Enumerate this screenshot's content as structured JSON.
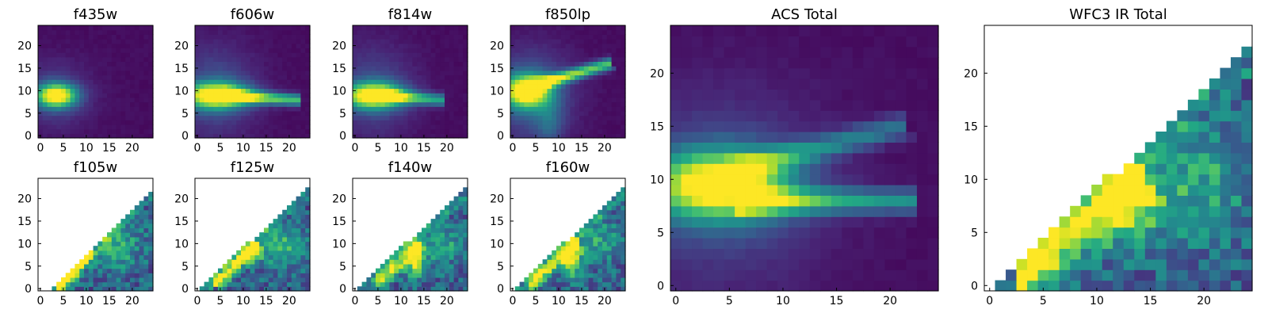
{
  "chart_data": [
    {
      "id": "f435w",
      "type": "heatmap",
      "title": "f435w",
      "xlim": [
        0,
        24
      ],
      "ylim": [
        0,
        24
      ],
      "xticks": [
        0,
        5,
        10,
        15,
        20
      ],
      "yticks": [
        0,
        5,
        10,
        15,
        20
      ],
      "colormap": "viridis",
      "coverage": "full",
      "structure": "compact-blob",
      "features": [
        {
          "kind": "blob",
          "cx": 3.5,
          "cy": 9,
          "sx": 3.0,
          "sy": 1.8,
          "amp": 1.0
        },
        {
          "kind": "halo",
          "cx": 3,
          "cy": 9,
          "sx": 5.5,
          "sy": 5,
          "amp": 0.18
        }
      ]
    },
    {
      "id": "f606w",
      "type": "heatmap",
      "title": "f606w",
      "xlim": [
        0,
        24
      ],
      "ylim": [
        0,
        24
      ],
      "xticks": [
        0,
        5,
        10,
        15,
        20
      ],
      "yticks": [
        0,
        5,
        10,
        15,
        20
      ],
      "colormap": "viridis",
      "coverage": "full",
      "structure": "horizontal-jet",
      "features": [
        {
          "kind": "blob",
          "cx": 4,
          "cy": 9,
          "sx": 5.0,
          "sy": 2.0,
          "amp": 1.0
        },
        {
          "kind": "jet",
          "x0": 6,
          "y0": 9,
          "x1": 22,
          "y1": 8,
          "w": 0.9,
          "amp": 0.85
        },
        {
          "kind": "halo",
          "cx": 4,
          "cy": 10,
          "sx": 6,
          "sy": 7,
          "amp": 0.22
        }
      ]
    },
    {
      "id": "f814w",
      "type": "heatmap",
      "title": "f814w",
      "xlim": [
        0,
        24
      ],
      "ylim": [
        0,
        24
      ],
      "xticks": [
        0,
        5,
        10,
        15,
        20
      ],
      "yticks": [
        0,
        5,
        10,
        15,
        20
      ],
      "colormap": "viridis",
      "coverage": "full",
      "structure": "horizontal-jet",
      "features": [
        {
          "kind": "blob",
          "cx": 4,
          "cy": 9,
          "sx": 4.5,
          "sy": 2.0,
          "amp": 1.0
        },
        {
          "kind": "jet",
          "x0": 6,
          "y0": 9,
          "x1": 19,
          "y1": 8,
          "w": 0.9,
          "amp": 0.7
        },
        {
          "kind": "halo",
          "cx": 4,
          "cy": 10,
          "sx": 6,
          "sy": 7,
          "amp": 0.2
        }
      ]
    },
    {
      "id": "f850lp",
      "type": "heatmap",
      "title": "f850lp",
      "xlim": [
        0,
        24
      ],
      "ylim": [
        0,
        24
      ],
      "xticks": [
        0,
        5,
        10,
        15,
        20
      ],
      "yticks": [
        0,
        5,
        10,
        15,
        20
      ],
      "colormap": "viridis",
      "coverage": "full",
      "structure": "diagonal-jet",
      "features": [
        {
          "kind": "blob",
          "cx": 3,
          "cy": 10,
          "sx": 3.5,
          "sy": 2.5,
          "amp": 1.0
        },
        {
          "kind": "jet",
          "x0": 4,
          "y0": 11,
          "x1": 21,
          "y1": 16,
          "w": 0.9,
          "amp": 0.9
        },
        {
          "kind": "halo",
          "cx": 4,
          "cy": 9,
          "sx": 6,
          "sy": 7,
          "amp": 0.28
        },
        {
          "kind": "blob",
          "cx": 8,
          "cy": 3,
          "sx": 2.0,
          "sy": 4,
          "amp": 0.2
        }
      ]
    },
    {
      "id": "f105w",
      "type": "heatmap",
      "title": "f105w",
      "xlim": [
        0,
        24
      ],
      "ylim": [
        0,
        24
      ],
      "xticks": [
        0,
        5,
        10,
        15,
        20
      ],
      "yticks": [
        0,
        5,
        10,
        15,
        20
      ],
      "colormap": "viridis",
      "coverage": "lower-right-triangle",
      "mask_x_start": 3,
      "mask_slope": 1.0,
      "features": [
        {
          "kind": "jet",
          "x0": 4,
          "y0": 0,
          "x1": 11,
          "y1": 8,
          "w": 1.0,
          "amp": 0.8
        },
        {
          "kind": "blob",
          "cx": 16,
          "cy": 10,
          "sx": 4,
          "sy": 4,
          "amp": 0.35
        }
      ]
    },
    {
      "id": "f125w",
      "type": "heatmap",
      "title": "f125w",
      "xlim": [
        0,
        24
      ],
      "ylim": [
        0,
        24
      ],
      "xticks": [
        0,
        5,
        10,
        15,
        20
      ],
      "yticks": [
        0,
        5,
        10,
        15,
        20
      ],
      "colormap": "viridis",
      "coverage": "lower-right-triangle",
      "mask_x_start": 1,
      "mask_slope": 0.95,
      "features": [
        {
          "kind": "jet",
          "x0": 4,
          "y0": 1,
          "x1": 13,
          "y1": 10,
          "w": 1.1,
          "amp": 0.65
        },
        {
          "kind": "blob",
          "cx": 12,
          "cy": 8,
          "sx": 1.5,
          "sy": 1.5,
          "amp": 0.45
        },
        {
          "kind": "blob",
          "cx": 18,
          "cy": 10,
          "sx": 4,
          "sy": 3.5,
          "amp": 0.35
        }
      ]
    },
    {
      "id": "f140w",
      "type": "heatmap",
      "title": "f140w",
      "xlim": [
        0,
        24
      ],
      "ylim": [
        0,
        24
      ],
      "xticks": [
        0,
        5,
        10,
        15,
        20
      ],
      "yticks": [
        0,
        5,
        10,
        15,
        20
      ],
      "colormap": "viridis",
      "coverage": "lower-right-triangle",
      "mask_x_start": 1,
      "mask_slope": 0.95,
      "features": [
        {
          "kind": "jet",
          "x0": 5,
          "y0": 1,
          "x1": 14,
          "y1": 10,
          "w": 1.1,
          "amp": 0.65
        },
        {
          "kind": "blob",
          "cx": 13,
          "cy": 6,
          "sx": 1.3,
          "sy": 2.5,
          "amp": 0.55
        },
        {
          "kind": "blob",
          "cx": 18,
          "cy": 10,
          "sx": 4,
          "sy": 3.5,
          "amp": 0.3
        }
      ]
    },
    {
      "id": "f160w",
      "type": "heatmap",
      "title": "f160w",
      "xlim": [
        0,
        24
      ],
      "ylim": [
        0,
        24
      ],
      "xticks": [
        0,
        5,
        10,
        15,
        20
      ],
      "yticks": [
        0,
        5,
        10,
        15,
        20
      ],
      "colormap": "viridis",
      "coverage": "lower-right-triangle",
      "mask_x_start": 1,
      "mask_slope": 0.95,
      "features": [
        {
          "kind": "jet",
          "x0": 4,
          "y0": 1,
          "x1": 14,
          "y1": 10,
          "w": 1.1,
          "amp": 0.65
        },
        {
          "kind": "blob",
          "cx": 13,
          "cy": 6,
          "sx": 1.4,
          "sy": 2.5,
          "amp": 0.55
        },
        {
          "kind": "blob",
          "cx": 18,
          "cy": 11,
          "sx": 4,
          "sy": 3.5,
          "amp": 0.3
        }
      ]
    },
    {
      "id": "acs-total",
      "type": "heatmap",
      "title": "ACS Total",
      "xlim": [
        0,
        24
      ],
      "ylim": [
        0,
        24
      ],
      "xticks": [
        0,
        5,
        10,
        15,
        20
      ],
      "yticks": [
        0,
        5,
        10,
        15,
        20
      ],
      "colormap": "viridis",
      "coverage": "full",
      "structure": "core-with-two-jets",
      "features": [
        {
          "kind": "blob",
          "cx": 4,
          "cy": 9.5,
          "sx": 4.5,
          "sy": 2.2,
          "amp": 1.0
        },
        {
          "kind": "jet",
          "x0": 6,
          "y0": 8,
          "x1": 22,
          "y1": 8,
          "w": 0.8,
          "amp": 0.6
        },
        {
          "kind": "jet",
          "x0": 6,
          "y0": 11,
          "x1": 21,
          "y1": 15,
          "w": 0.8,
          "amp": 0.45
        },
        {
          "kind": "halo",
          "cx": 4,
          "cy": 9,
          "sx": 7,
          "sy": 6.5,
          "amp": 0.2
        }
      ]
    },
    {
      "id": "wfc3-ir-total",
      "type": "heatmap",
      "title": "WFC3 IR Total",
      "xlim": [
        0,
        24
      ],
      "ylim": [
        0,
        24
      ],
      "xticks": [
        0,
        5,
        10,
        15,
        20
      ],
      "yticks": [
        0,
        5,
        10,
        15,
        20
      ],
      "colormap": "viridis",
      "coverage": "lower-right-triangle",
      "mask_x_start": 1,
      "mask_slope": 0.95,
      "features": [
        {
          "kind": "jet",
          "x0": 3,
          "y0": 1,
          "x1": 14,
          "y1": 10,
          "w": 1.6,
          "amp": 0.7
        },
        {
          "kind": "blob",
          "cx": 13,
          "cy": 7,
          "sx": 2,
          "sy": 2.5,
          "amp": 0.4
        },
        {
          "kind": "blob",
          "cx": 19,
          "cy": 10,
          "sx": 4,
          "sy": 4,
          "amp": 0.3
        }
      ]
    }
  ]
}
